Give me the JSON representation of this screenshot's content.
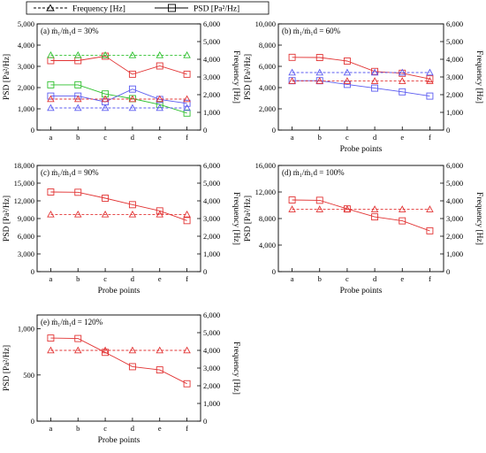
{
  "legend": {
    "frequency": "Frequency [Hz]",
    "psd": "PSD [Pa²/Hz]"
  },
  "colors": {
    "red": "#e23434",
    "green": "#2ec02e",
    "blue": "#5b5bf0",
    "axis": "#000000"
  },
  "chart_data": [
    {
      "type": "line",
      "title": "(a) ṁ₁/ṁ₁d = 30%",
      "xlabel": "Probe points",
      "ylabel": "PSD [Pa²/Hz]",
      "y2label": "Frequency [Hz]",
      "categories": [
        "a",
        "b",
        "c",
        "d",
        "e",
        "f"
      ],
      "ylim": [
        0,
        5000
      ],
      "yticks": [
        0,
        1000,
        2000,
        3000,
        4000,
        5000
      ],
      "y2lim": [
        0,
        6000
      ],
      "y2ticks": [
        0,
        1000,
        2000,
        3000,
        4000,
        5000,
        6000
      ],
      "show_xlabel": false,
      "series": [
        {
          "axis": "psd",
          "color": "red",
          "values": [
            3270,
            3270,
            3480,
            2630,
            3020,
            2630
          ]
        },
        {
          "axis": "psd",
          "color": "green",
          "values": [
            2130,
            2130,
            1700,
            1480,
            1200,
            800
          ]
        },
        {
          "axis": "psd",
          "color": "blue",
          "values": [
            1600,
            1600,
            1330,
            1930,
            1440,
            1260
          ]
        },
        {
          "axis": "freq",
          "color": "red",
          "values": [
            1750,
            1750,
            1750,
            1750,
            1750,
            1750
          ]
        },
        {
          "axis": "freq",
          "color": "green",
          "values": [
            4230,
            4230,
            4230,
            4230,
            4230,
            4230
          ]
        },
        {
          "axis": "freq",
          "color": "blue",
          "values": [
            1250,
            1250,
            1250,
            1250,
            1250,
            1250
          ]
        }
      ]
    },
    {
      "type": "line",
      "title": "(b) ṁ₁/ṁ₁d = 60%",
      "xlabel": "Probe points",
      "ylabel": "PSD [Pa²/Hz]",
      "y2label": "Frequency [Hz]",
      "categories": [
        "a",
        "b",
        "c",
        "d",
        "e",
        "f"
      ],
      "ylim": [
        0,
        10000
      ],
      "yticks": [
        0,
        2000,
        4000,
        6000,
        8000,
        10000
      ],
      "y2lim": [
        0,
        6000
      ],
      "y2ticks": [
        0,
        1000,
        2000,
        3000,
        4000,
        5000,
        6000
      ],
      "show_xlabel": true,
      "series": [
        {
          "axis": "psd",
          "color": "red",
          "values": [
            6850,
            6830,
            6500,
            5520,
            5350,
            4820
          ]
        },
        {
          "axis": "psd",
          "color": "blue",
          "values": [
            4650,
            4650,
            4300,
            3950,
            3600,
            3200
          ]
        },
        {
          "axis": "freq",
          "color": "red",
          "values": [
            2770,
            2770,
            2770,
            2770,
            2770,
            2770
          ]
        },
        {
          "axis": "freq",
          "color": "blue",
          "values": [
            3250,
            3250,
            3250,
            3250,
            3250,
            3250
          ]
        }
      ]
    },
    {
      "type": "line",
      "title": "(c) ṁ₁/ṁ₁d = 90%",
      "xlabel": "Probe points",
      "ylabel": "PSD [Pa²/Hz]",
      "y2label": "Frequency [Hz]",
      "categories": [
        "a",
        "b",
        "c",
        "d",
        "e",
        "f"
      ],
      "ylim": [
        0,
        18000
      ],
      "yticks": [
        0,
        3000,
        6000,
        9000,
        12000,
        15000,
        18000
      ],
      "y2lim": [
        0,
        6000
      ],
      "y2ticks": [
        0,
        1000,
        2000,
        3000,
        4000,
        5000,
        6000
      ],
      "show_xlabel": true,
      "series": [
        {
          "axis": "psd",
          "color": "red",
          "values": [
            13500,
            13450,
            12450,
            11350,
            10300,
            8650
          ]
        },
        {
          "axis": "freq",
          "color": "red",
          "values": [
            3230,
            3230,
            3230,
            3230,
            3230,
            3230
          ]
        }
      ]
    },
    {
      "type": "line",
      "title": "(d) ṁ₁/ṁ₁d = 100%",
      "xlabel": "Probe points",
      "ylabel": "PSD [Pa²/Hz]",
      "y2label": "Frequency [Hz]",
      "categories": [
        "a",
        "b",
        "c",
        "d",
        "e",
        "f"
      ],
      "ylim": [
        0,
        16000
      ],
      "yticks": [
        0,
        4000,
        8000,
        12000,
        16000
      ],
      "y2lim": [
        0,
        6000
      ],
      "y2ticks": [
        0,
        1000,
        2000,
        3000,
        4000,
        5000,
        6000
      ],
      "show_xlabel": true,
      "series": [
        {
          "axis": "psd",
          "color": "red",
          "values": [
            10800,
            10750,
            9450,
            8250,
            7650,
            6150
          ]
        },
        {
          "axis": "freq",
          "color": "red",
          "values": [
            3520,
            3520,
            3520,
            3520,
            3520,
            3520
          ]
        }
      ]
    },
    {
      "type": "line",
      "title": "(e) ṁ₁/ṁ₁d = 120%",
      "xlabel": "Probe points",
      "ylabel": "PSD [Pa²/Hz]",
      "y2label": "Frequency [Hz]",
      "categories": [
        "a",
        "b",
        "c",
        "d",
        "e",
        "f"
      ],
      "ylim": [
        0,
        1150
      ],
      "yticks": [
        0,
        500,
        1000
      ],
      "y2lim": [
        0,
        6000
      ],
      "y2ticks": [
        0,
        1000,
        2000,
        3000,
        4000,
        5000,
        6000
      ],
      "show_xlabel": true,
      "series": [
        {
          "axis": "psd",
          "color": "red",
          "values": [
            900,
            895,
            745,
            590,
            555,
            405
          ]
        },
        {
          "axis": "freq",
          "color": "red",
          "values": [
            4000,
            4000,
            4000,
            4000,
            4000,
            4000
          ]
        }
      ]
    }
  ]
}
